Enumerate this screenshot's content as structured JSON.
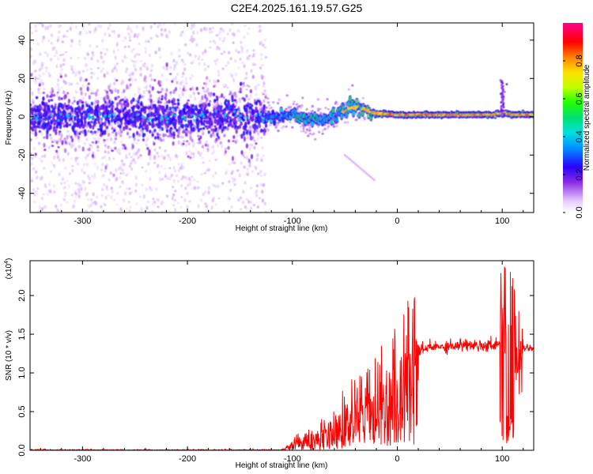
{
  "page": {
    "title": "C2E4.2025.161.19.57.G25"
  },
  "chart_data": [
    {
      "type": "heatmap",
      "xlabel": "Height of straight line (km)",
      "ylabel": "Frequency (Hz)",
      "xlim": [
        -350,
        130
      ],
      "ylim": [
        -50,
        49
      ],
      "x_ticks": [
        -300,
        -200,
        -100,
        0,
        100
      ],
      "y_ticks": [
        -40,
        -20,
        0,
        20,
        40
      ],
      "grid": false,
      "colorbar": {
        "label": "Normalized spectral amplitude",
        "range": [
          0.0,
          1.0
        ],
        "ticks": [
          "0.0",
          "0.2",
          "0.4",
          "0.6",
          "0.8"
        ],
        "colormap": "rainbow (white-violet-blue-cyan-green-yellow-red-magenta)"
      },
      "features": {
        "noise_region_x": [
          -350,
          -125
        ],
        "noise_spread_hz": [
          -50,
          49
        ],
        "dense_band_spread_hz": [
          -12,
          12
        ],
        "tracked_line": [
          {
            "x": -125,
            "f": 0
          },
          {
            "x": -100,
            "f": 1
          },
          {
            "x": -75,
            "f": -2
          },
          {
            "x": -60,
            "f": 0
          },
          {
            "x": -45,
            "f": 5
          },
          {
            "x": -35,
            "f": 5
          },
          {
            "x": -25,
            "f": 2
          },
          {
            "x": 0,
            "f": 1
          },
          {
            "x": 50,
            "f": 1
          },
          {
            "x": 90,
            "f": 1
          },
          {
            "x": 100,
            "f": 2
          },
          {
            "x": 110,
            "f": 1
          },
          {
            "x": 130,
            "f": 1
          }
        ],
        "spur": {
          "x": 100,
          "f_top": 19
        },
        "diagonal_tail": {
          "from": {
            "x": -50,
            "f": -20
          },
          "to": {
            "x": -22,
            "f": -33
          }
        }
      }
    },
    {
      "type": "line",
      "xlabel": "Height of straight line (km)",
      "ylabel": "SNR (10 * v/v)",
      "y_multiplier": "(x10^4)",
      "y_multiplier_base": "(x10",
      "y_multiplier_exp": "4",
      "xlim": [
        -350,
        130
      ],
      "ylim": [
        0,
        2.45
      ],
      "x_ticks": [
        -300,
        -200,
        -100,
        0,
        100
      ],
      "y_ticks": [
        "0.0",
        "0.5",
        "1.0",
        "1.5",
        "2.0"
      ],
      "grid": false,
      "color": "#ff0000",
      "series": [
        {
          "values_approx": [
            {
              "x": -350,
              "y": 0.0
            },
            {
              "x": -110,
              "y": 0.0
            },
            {
              "x": -100,
              "y": 0.1
            },
            {
              "x": -80,
              "y": 0.2
            },
            {
              "x": -60,
              "y": 0.3
            },
            {
              "x": -45,
              "y": 0.6
            },
            {
              "x": -30,
              "y": 0.6
            },
            {
              "x": -15,
              "y": 0.8
            },
            {
              "x": 0,
              "y": 1.0
            },
            {
              "x": 15,
              "y": 1.25
            },
            {
              "x": 30,
              "y": 1.33
            },
            {
              "x": 60,
              "y": 1.36
            },
            {
              "x": 90,
              "y": 1.36
            },
            {
              "x": 98,
              "y": 1.4
            },
            {
              "x": 103,
              "y": 2.4
            },
            {
              "x": 107,
              "y": 0.05
            },
            {
              "x": 112,
              "y": 1.3
            },
            {
              "x": 120,
              "y": 1.33
            },
            {
              "x": 130,
              "y": 1.32
            }
          ]
        }
      ]
    }
  ]
}
